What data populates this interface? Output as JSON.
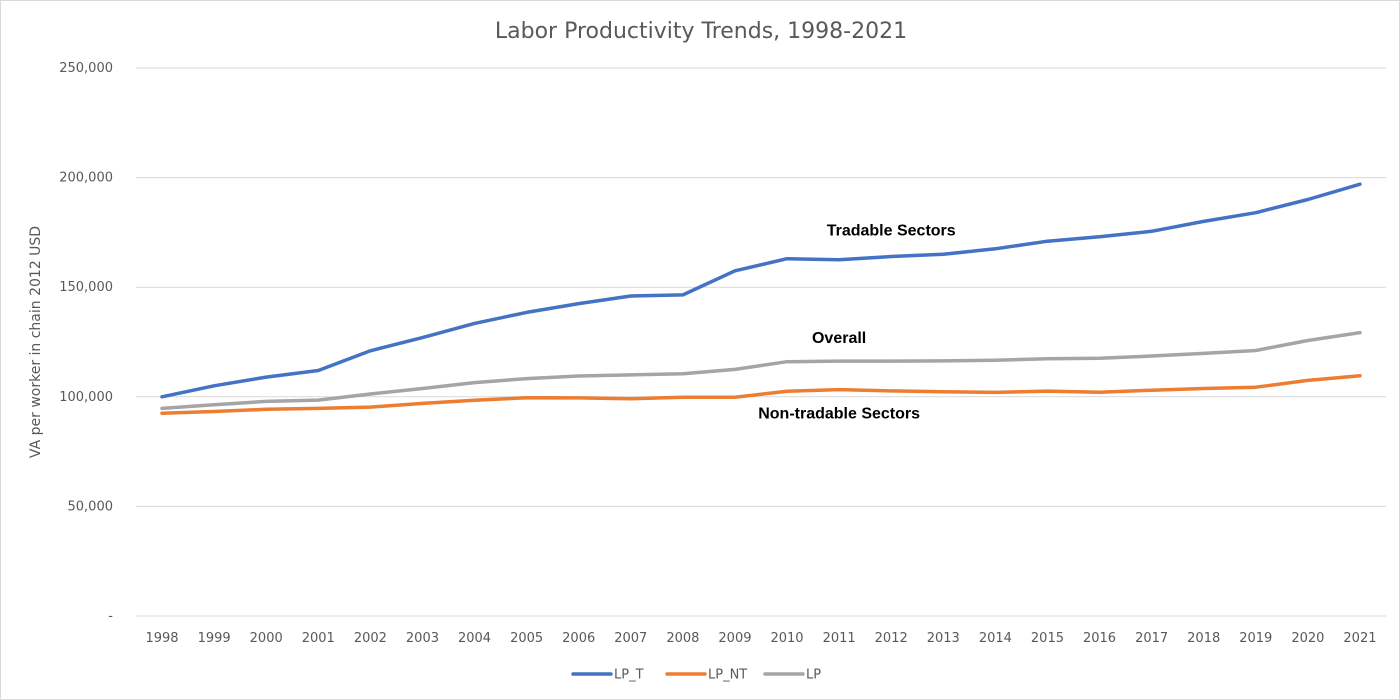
{
  "chart_data": {
    "type": "line",
    "title": "Labor Productivity Trends, 1998-2021",
    "ylabel": "VA per worker in chain 2012 USD",
    "xlabel": "",
    "ylim": [
      0,
      250000
    ],
    "y_ticks": [
      0,
      50000,
      100000,
      150000,
      200000,
      250000
    ],
    "y_tick_labels": [
      "-",
      "50,000",
      "100,000",
      "150,000",
      "200,000",
      "250,000"
    ],
    "grid": true,
    "legend_position": "bottom",
    "categories": [
      "1998",
      "1999",
      "2000",
      "2001",
      "2002",
      "2003",
      "2004",
      "2005",
      "2006",
      "2007",
      "2008",
      "2009",
      "2010",
      "2011",
      "2012",
      "2013",
      "2014",
      "2015",
      "2016",
      "2017",
      "2018",
      "2019",
      "2020",
      "2021"
    ],
    "series": [
      {
        "name": "LP_T",
        "color": "#4472c4",
        "values": [
          100000,
          105000,
          109000,
          112000,
          121000,
          127000,
          133500,
          138500,
          142500,
          146000,
          146500,
          157500,
          163000,
          162500,
          164000,
          165000,
          167500,
          171000,
          173000,
          175500,
          180000,
          184000,
          190000,
          197000
        ]
      },
      {
        "name": "LP_NT",
        "color": "#ed7d31",
        "values": [
          92500,
          93300,
          94300,
          94700,
          95300,
          97000,
          98400,
          99600,
          99500,
          99100,
          99800,
          99800,
          102500,
          103300,
          102700,
          102300,
          102000,
          102600,
          102100,
          103000,
          103800,
          104400,
          107500,
          109600
        ]
      },
      {
        "name": "LP",
        "color": "#a5a5a5",
        "values": [
          94700,
          96400,
          97900,
          98500,
          101300,
          103800,
          106500,
          108300,
          109500,
          110000,
          110500,
          112500,
          116000,
          116300,
          116300,
          116400,
          116700,
          117400,
          117600,
          118600,
          119800,
          121100,
          125700,
          129300
        ]
      }
    ],
    "annotations": [
      {
        "text": "Tradable Sectors",
        "year": "2012",
        "value": 173500
      },
      {
        "text": "Overall",
        "year": "2011",
        "value": 124500
      },
      {
        "text": "Non-tradable Sectors",
        "year": "2011",
        "value": 90000
      }
    ]
  }
}
